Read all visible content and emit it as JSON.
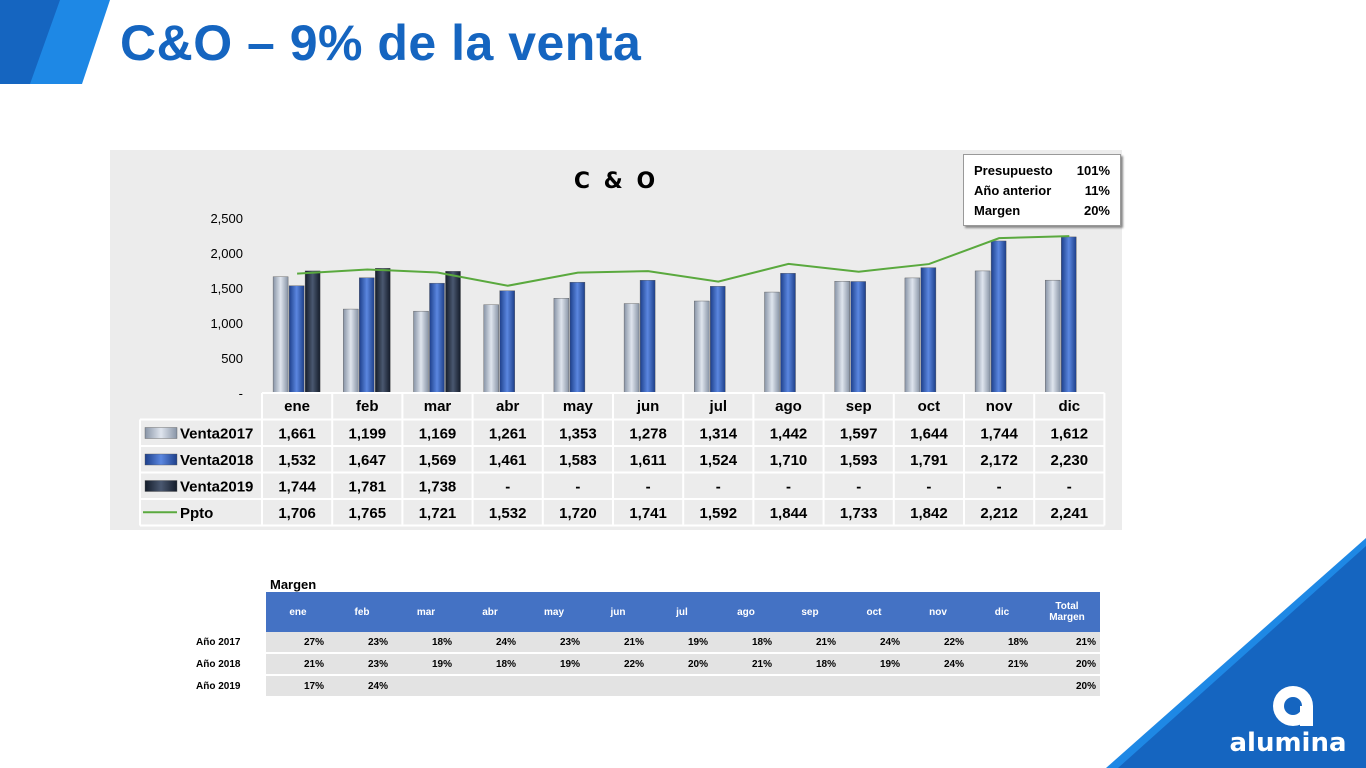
{
  "slide": {
    "title": "C&O – 9% de la venta",
    "logo_text": "alumina",
    "accent_color": "#1565c0"
  },
  "kpi": [
    {
      "label": "Presupuesto",
      "value": "101%"
    },
    {
      "label": "Año anterior",
      "value": "11%"
    },
    {
      "label": "Margen",
      "value": "20%"
    }
  ],
  "chart_data": {
    "type": "bar",
    "title": "C & O",
    "categories": [
      "ene",
      "feb",
      "mar",
      "abr",
      "may",
      "jun",
      "jul",
      "ago",
      "sep",
      "oct",
      "nov",
      "dic"
    ],
    "y_ticks": [
      "2,500",
      "2,000",
      "1,500",
      "1,000",
      "500",
      "-"
    ],
    "ylim": [
      0,
      2500
    ],
    "series": [
      {
        "name": "Venta2017",
        "kind": "bar",
        "color": "#b4c0d0",
        "values": [
          1661,
          1199,
          1169,
          1261,
          1353,
          1278,
          1314,
          1442,
          1597,
          1644,
          1744,
          1612
        ],
        "labels": [
          "1,661",
          "1,199",
          "1,169",
          "1,261",
          "1,353",
          "1,278",
          "1,314",
          "1,442",
          "1,597",
          "1,644",
          "1,744",
          "1,612"
        ]
      },
      {
        "name": "Venta2018",
        "kind": "bar",
        "color": "#2f5fc4",
        "values": [
          1532,
          1647,
          1569,
          1461,
          1583,
          1611,
          1524,
          1710,
          1593,
          1791,
          2172,
          2230
        ],
        "labels": [
          "1,532",
          "1,647",
          "1,569",
          "1,461",
          "1,583",
          "1,611",
          "1,524",
          "1,710",
          "1,593",
          "1,791",
          "2,172",
          "2,230"
        ]
      },
      {
        "name": "Venta2019",
        "kind": "bar",
        "color": "#1f2a3c",
        "values": [
          1744,
          1781,
          1738,
          null,
          null,
          null,
          null,
          null,
          null,
          null,
          null,
          null
        ],
        "labels": [
          "1,744",
          "1,781",
          "1,738",
          "-",
          "-",
          "-",
          "-",
          "-",
          "-",
          "-",
          "-",
          "-"
        ]
      },
      {
        "name": "Ppto",
        "kind": "line",
        "color": "#5aa93e",
        "values": [
          1706,
          1765,
          1721,
          1532,
          1720,
          1741,
          1592,
          1844,
          1733,
          1842,
          2212,
          2241
        ],
        "labels": [
          "1,706",
          "1,765",
          "1,721",
          "1,532",
          "1,720",
          "1,741",
          "1,592",
          "1,844",
          "1,733",
          "1,842",
          "2,212",
          "2,241"
        ]
      }
    ],
    "legend": "data-table-left"
  },
  "margin_table": {
    "caption": "Margen",
    "headers": [
      "ene",
      "feb",
      "mar",
      "abr",
      "may",
      "jun",
      "jul",
      "ago",
      "sep",
      "oct",
      "nov",
      "dic"
    ],
    "total_header": [
      "Total",
      "Margen"
    ],
    "rows": [
      {
        "label": "Año 2017",
        "values": [
          "27%",
          "23%",
          "18%",
          "24%",
          "23%",
          "21%",
          "19%",
          "18%",
          "21%",
          "24%",
          "22%",
          "18%"
        ],
        "total": "21%"
      },
      {
        "label": "Año 2018",
        "values": [
          "21%",
          "23%",
          "19%",
          "18%",
          "19%",
          "22%",
          "20%",
          "21%",
          "18%",
          "19%",
          "24%",
          "21%"
        ],
        "total": "20%"
      },
      {
        "label": "Año 2019",
        "values": [
          "17%",
          "24%",
          "",
          "",
          "",
          "",
          "",
          "",
          "",
          "",
          "",
          ""
        ],
        "total": "20%"
      }
    ]
  }
}
